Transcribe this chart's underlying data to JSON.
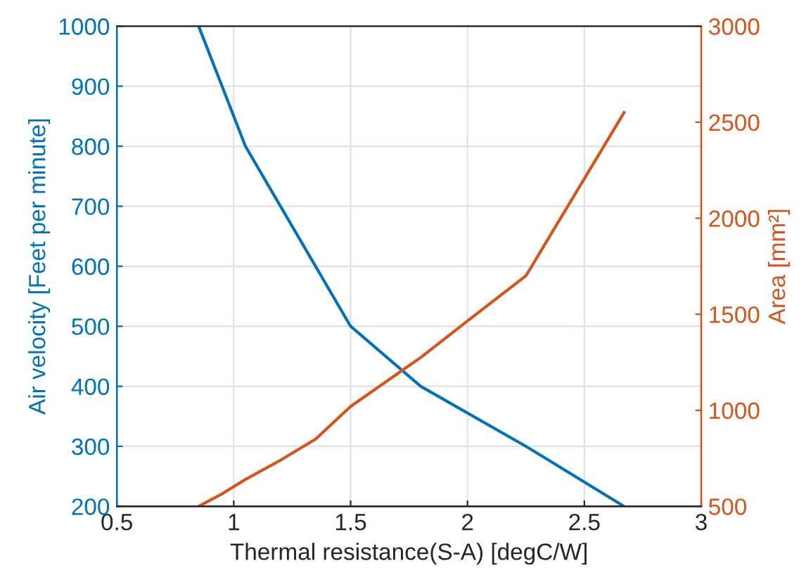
{
  "chart_data": {
    "type": "line",
    "xlabel": "Thermal resistance(S-A) [degC/W]",
    "ylabel": "Air velocity [Feet per minute]",
    "y2label": "Area [mm²]",
    "xlim": [
      0.5,
      3
    ],
    "xticks": [
      0.5,
      1,
      1.5,
      2,
      2.5,
      3
    ],
    "ylim": [
      200,
      1000
    ],
    "yticks": [
      200,
      300,
      400,
      500,
      600,
      700,
      800,
      900,
      1000
    ],
    "y2lim": [
      500,
      3000
    ],
    "y2ticks": [
      500,
      1000,
      1500,
      2000,
      2500,
      3000
    ],
    "grid": true,
    "series": [
      {
        "color": "#0072bd",
        "x": [
          0.85,
          1.05,
          1.5,
          1.8,
          2.25,
          2.67
        ],
        "values": [
          1000,
          800,
          500,
          400,
          300,
          200
        ]
      },
      {
        "color": "#d95319",
        "axis": "y2",
        "x": [
          0.85,
          0.95,
          1.05,
          1.2,
          1.35,
          1.5,
          1.8,
          2.0,
          2.25,
          2.67
        ],
        "values": [
          500,
          565,
          640,
          740,
          850,
          1020,
          1275,
          1465,
          1700,
          2550
        ]
      }
    ]
  }
}
